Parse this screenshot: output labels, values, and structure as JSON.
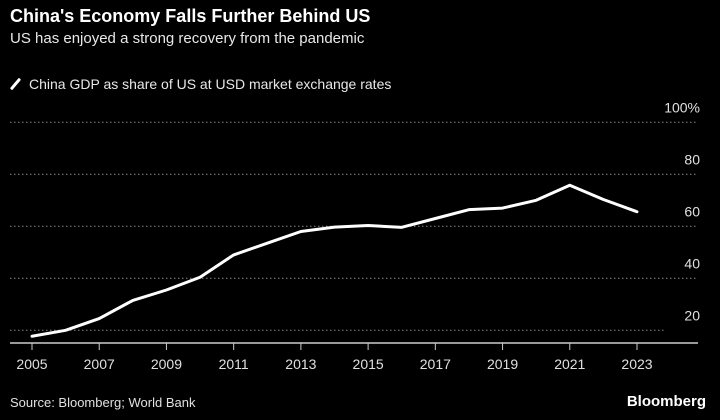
{
  "chart_data": {
    "type": "line",
    "title": "China's Economy Falls Further Behind US",
    "subtitle": "US has enjoyed a strong recovery from the pandemic",
    "x": [
      2005,
      2006,
      2007,
      2008,
      2009,
      2010,
      2011,
      2012,
      2013,
      2014,
      2015,
      2016,
      2017,
      2018,
      2019,
      2020,
      2021,
      2022,
      2023
    ],
    "series": [
      {
        "name": "China GDP as share of US at USD market exchange rates",
        "values": [
          17.7,
          20,
          24.5,
          31.5,
          35.5,
          40.4,
          49,
          53.5,
          58,
          59.7,
          60.3,
          59.6,
          63,
          66.4,
          67,
          70,
          75.8,
          70.3,
          65.6
        ],
        "color": "#ffffff"
      }
    ],
    "xticks": [
      "2005",
      "2007",
      "2009",
      "2011",
      "2013",
      "2015",
      "2017",
      "2019",
      "2021",
      "2023"
    ],
    "yticks": [
      "20",
      "40",
      "60",
      "80",
      "100%"
    ],
    "ylim": [
      15,
      100
    ],
    "xlim": [
      2005,
      2023
    ],
    "grid": "horizontal dotted",
    "legend": "top-left",
    "xlabel": "",
    "ylabel": "",
    "source": "Source: Bloomberg; World Bank",
    "brand": "Bloomberg",
    "colors": {
      "background": "#000000",
      "line": "#ffffff",
      "grid": "#888888"
    }
  }
}
